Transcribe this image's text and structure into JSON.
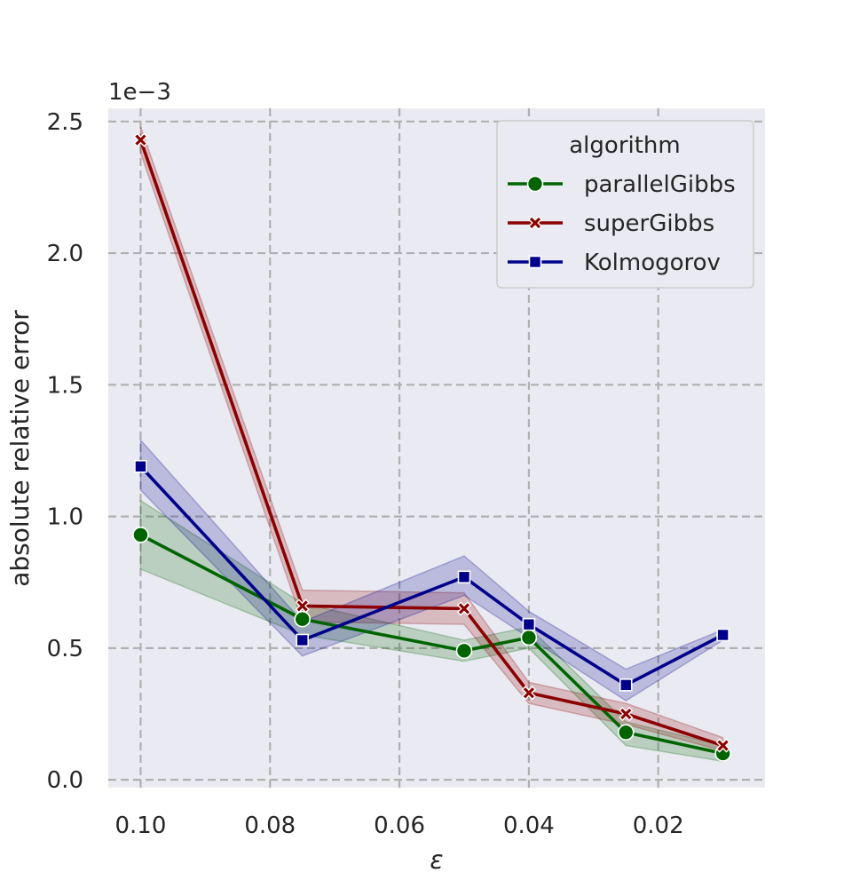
{
  "chart_data": {
    "type": "line",
    "xlabel": "ε",
    "ylabel": "absolute relative error",
    "y_multiplier_label": "1e−3",
    "xlim": [
      0.105,
      0.0035
    ],
    "ylim": [
      -0.03,
      2.55
    ],
    "x_ticks": [
      0.1,
      0.08,
      0.06,
      0.04,
      0.02
    ],
    "x_tick_labels": [
      "0.10",
      "0.08",
      "0.06",
      "0.04",
      "0.02"
    ],
    "y_ticks": [
      0.0,
      0.5,
      1.0,
      1.5,
      2.0,
      2.5
    ],
    "y_tick_labels": [
      "0.0",
      "0.5",
      "1.0",
      "1.5",
      "2.0",
      "2.5"
    ],
    "x": [
      0.1,
      0.075,
      0.05,
      0.04,
      0.025,
      0.01
    ],
    "grid": true,
    "x_inverted": true,
    "legend": {
      "title": "algorithm",
      "placement": "top-right"
    },
    "series": [
      {
        "name": "parallelGibbs",
        "color": "#006400",
        "marker": "circle",
        "values": [
          0.93,
          0.61,
          0.49,
          0.54,
          0.18,
          0.1
        ],
        "ci_low": [
          0.8,
          0.55,
          0.45,
          0.5,
          0.13,
          0.07
        ],
        "ci_high": [
          1.06,
          0.67,
          0.53,
          0.58,
          0.22,
          0.13
        ]
      },
      {
        "name": "superGibbs",
        "color": "#8b0000",
        "marker": "x",
        "values": [
          2.43,
          0.66,
          0.65,
          0.33,
          0.25,
          0.13
        ],
        "ci_low": [
          2.38,
          0.6,
          0.59,
          0.29,
          0.21,
          0.11
        ],
        "ci_high": [
          2.48,
          0.72,
          0.71,
          0.37,
          0.29,
          0.16
        ]
      },
      {
        "name": "Kolmogorov",
        "color": "#00008b",
        "marker": "square",
        "values": [
          1.19,
          0.53,
          0.77,
          0.59,
          0.36,
          0.55
        ],
        "ci_low": [
          1.1,
          0.47,
          0.7,
          0.54,
          0.3,
          0.53
        ],
        "ci_high": [
          1.29,
          0.6,
          0.85,
          0.64,
          0.42,
          0.57
        ]
      }
    ]
  }
}
